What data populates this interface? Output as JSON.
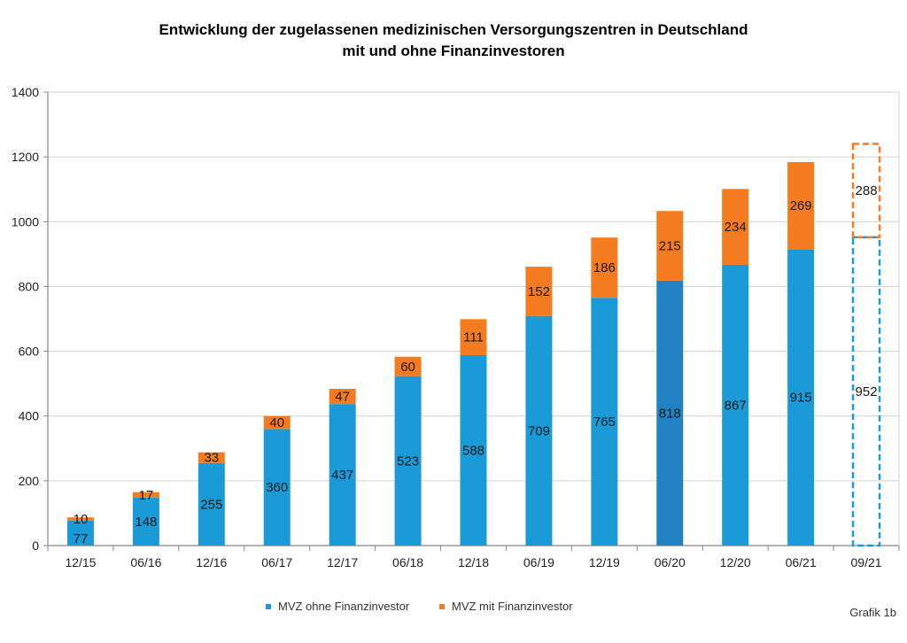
{
  "title_line1": "Entwicklung der zugelassenen medizinischen Versorgungszentren in Deutschland",
  "title_line2": "mit und ohne Finanzinvestoren",
  "note": "Grafik 1b",
  "colors": {
    "ohne": "#1a9bd7",
    "ohne_highlight": "#2382c4",
    "mit": "#f47b20",
    "grid": "#d0d0d0",
    "axis": "#888888"
  },
  "chart_data": {
    "type": "bar",
    "stacked": true,
    "title": "Entwicklung der zugelassenen medizinischen Versorgungszentren in Deutschland mit und ohne Finanzinvestoren",
    "xlabel": "",
    "ylabel": "",
    "ylim": [
      0,
      1400
    ],
    "yticks": [
      0,
      200,
      400,
      600,
      800,
      1000,
      1200,
      1400
    ],
    "grid": true,
    "legend_position": "bottom",
    "categories": [
      "12/15",
      "06/16",
      "12/16",
      "06/17",
      "12/17",
      "06/18",
      "12/18",
      "06/19",
      "12/19",
      "06/20",
      "12/20",
      "06/21",
      "09/21"
    ],
    "series": [
      {
        "name": "MVZ ohne Finanzinvestor",
        "color": "#1a9bd7",
        "values": [
          77,
          148,
          255,
          360,
          437,
          523,
          588,
          709,
          765,
          818,
          867,
          915,
          952
        ]
      },
      {
        "name": "MVZ mit Finanzinvestor",
        "color": "#f47b20",
        "values": [
          10,
          17,
          33,
          40,
          47,
          60,
          111,
          152,
          186,
          215,
          234,
          269,
          288
        ]
      }
    ],
    "highlighted_category": "06/20",
    "projected_categories": [
      "09/21"
    ]
  }
}
